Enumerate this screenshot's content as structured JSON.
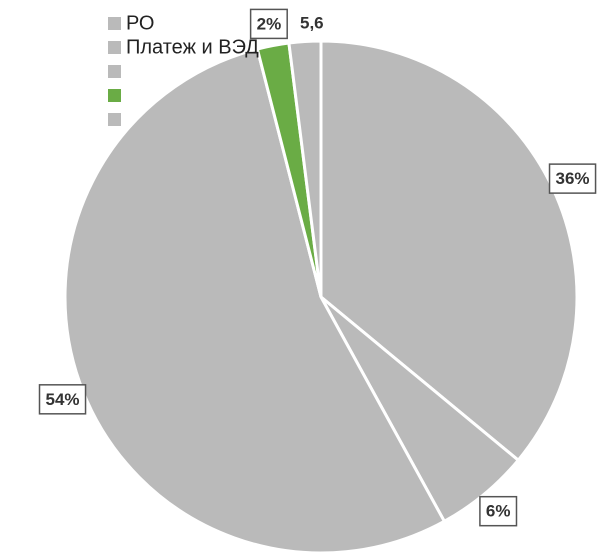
{
  "chart_data": {
    "type": "pie",
    "categories": [
      "РО",
      "Платеж и ВЭД",
      null,
      null,
      null
    ],
    "values": [
      36,
      6,
      54,
      2,
      2
    ],
    "value_labels": [
      "36%",
      "6%",
      "54%",
      "2%",
      null
    ],
    "colors": [
      "#bababa",
      "#bababa",
      "#bababa",
      "#6aac45",
      "#bababa"
    ],
    "annotation": "5,6"
  }
}
